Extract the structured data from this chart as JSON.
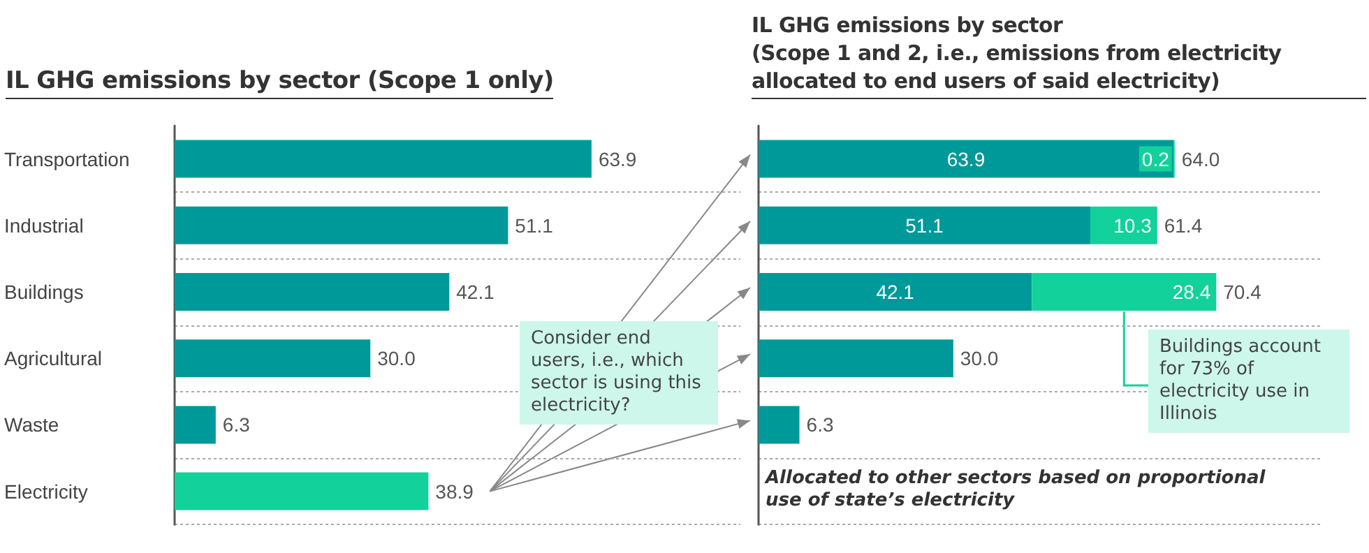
{
  "chart_data": [
    {
      "type": "bar",
      "orientation": "horizontal",
      "title": "IL GHG emissions by sector (Scope 1 only)",
      "categories": [
        "Transportation",
        "Industrial",
        "Buildings",
        "Agricultural",
        "Waste",
        "Electricity"
      ],
      "values": [
        63.9,
        51.1,
        42.1,
        30.0,
        6.3,
        38.9
      ],
      "value_labels": [
        "63.9",
        "51.1",
        "42.1",
        "30.0",
        "6.3",
        "38.9"
      ],
      "colors": [
        "#009999",
        "#009999",
        "#009999",
        "#009999",
        "#009999",
        "#13d19b"
      ],
      "grid": "y",
      "annotations": [
        "Consider end users, i.e., which sector is using this electricity?"
      ]
    },
    {
      "type": "bar",
      "orientation": "horizontal",
      "stacked": true,
      "title": "IL GHG emissions by sector\n(Scope 1 and 2, i.e., emissions from electricity allocated to end users of said electricity)",
      "categories": [
        null,
        null,
        null,
        null,
        null,
        null
      ],
      "series": [
        {
          "color": "#009999",
          "values": [
            63.9,
            51.1,
            42.1,
            30.0,
            6.3,
            null
          ],
          "value_labels": [
            "63.9",
            "51.1",
            "42.1",
            "30.0",
            "6.3",
            null
          ]
        },
        {
          "color": "#13d19b",
          "values": [
            0.2,
            10.3,
            28.4,
            null,
            null,
            null
          ],
          "value_labels": [
            "0.2",
            "10.3",
            "28.4",
            null,
            null,
            null
          ]
        }
      ],
      "totals": [
        "64.0",
        "61.4",
        "70.4",
        null,
        null,
        null
      ],
      "grid": "y",
      "annotations": [
        "Buildings account for 73% of electricity use in Illinois",
        "Allocated to other sectors based on proportional use of state’s electricity"
      ]
    }
  ]
}
